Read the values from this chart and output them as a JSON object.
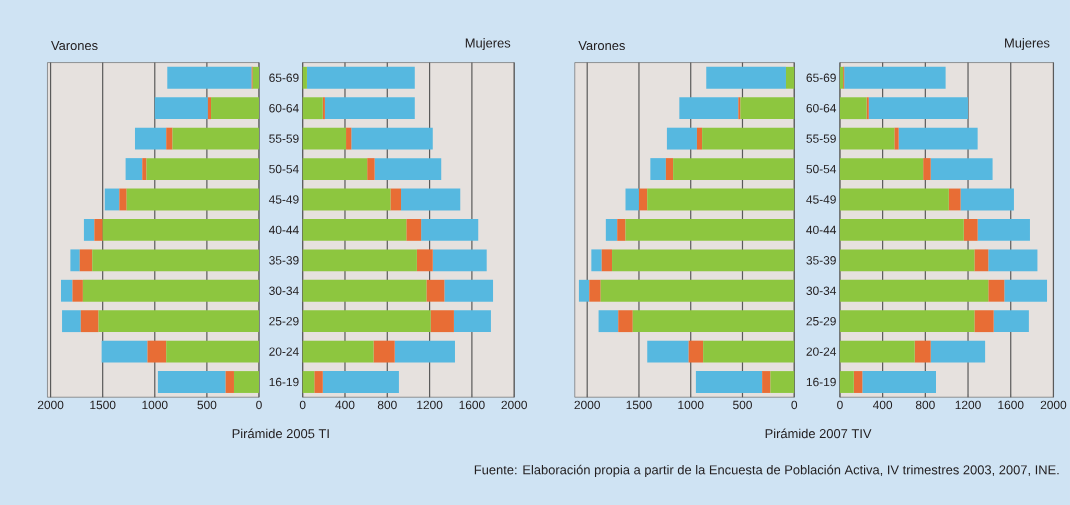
{
  "chart_data": [
    {
      "type": "bar",
      "orientation": "horizontal",
      "stacked": true,
      "title": "Varones",
      "categories": [
        null,
        null,
        null,
        null,
        null,
        null,
        null,
        null,
        null,
        null,
        null
      ],
      "series": [
        {
          "color": "#8dc63f",
          "values": [
            60,
            460,
            830,
            1080,
            1270,
            1500,
            1600,
            1690,
            1540,
            890,
            240
          ]
        },
        {
          "color": "#e86d35",
          "values": [
            10,
            30,
            60,
            40,
            70,
            80,
            120,
            100,
            170,
            180,
            80
          ]
        },
        {
          "color": "#56b8e0",
          "values": [
            810,
            510,
            300,
            160,
            140,
            100,
            90,
            110,
            180,
            440,
            650
          ]
        }
      ],
      "xlim": [
        2030,
        0
      ],
      "xticks": [
        2000,
        1500,
        1000,
        500,
        0
      ],
      "grid": "x",
      "tick_labels": "x"
    },
    {
      "type": "bar",
      "orientation": "horizontal",
      "stacked": true,
      "title": "Mujeres",
      "xlabel": "Pirámide 2005 TI",
      "categories": [
        "65-69",
        "60-64",
        "55-59",
        "50-54",
        "45-49",
        "40-44",
        "35-39",
        "30-34",
        "25-29",
        "20-24",
        "16-19"
      ],
      "series": [
        {
          "color": "#8dc63f",
          "values": [
            40,
            190,
            410,
            610,
            830,
            980,
            1080,
            1170,
            1210,
            670,
            110
          ]
        },
        {
          "color": "#e86d35",
          "values": [
            null,
            20,
            50,
            70,
            100,
            140,
            150,
            170,
            220,
            200,
            80
          ]
        },
        {
          "color": "#56b8e0",
          "values": [
            1020,
            850,
            770,
            630,
            560,
            540,
            510,
            460,
            350,
            570,
            720
          ]
        }
      ],
      "xlim": [
        0,
        2000
      ],
      "xticks": [
        0,
        400,
        800,
        1200,
        1600,
        2000
      ],
      "grid": "x"
    },
    {
      "type": "bar",
      "orientation": "horizontal",
      "stacked": true,
      "title": "Varones",
      "categories": [
        null,
        null,
        null,
        null,
        null,
        null,
        null,
        null,
        null,
        null,
        null
      ],
      "series": [
        {
          "color": "#8dc63f",
          "values": [
            80,
            520,
            890,
            1170,
            1420,
            1630,
            1760,
            1870,
            1560,
            880,
            230
          ]
        },
        {
          "color": "#e86d35",
          "values": [
            null,
            20,
            50,
            70,
            80,
            80,
            100,
            110,
            140,
            140,
            80
          ]
        },
        {
          "color": "#56b8e0",
          "values": [
            770,
            570,
            290,
            150,
            130,
            110,
            100,
            100,
            190,
            400,
            640
          ]
        }
      ],
      "xlim": [
        2120,
        0
      ],
      "xticks": [
        2000,
        1500,
        1000,
        500,
        0
      ],
      "grid": "x",
      "tick_labels": "x"
    },
    {
      "type": "bar",
      "orientation": "horizontal",
      "stacked": true,
      "title": "Mujeres",
      "xlabel": "Pirámide 2007 TIV",
      "categories": [
        "65-69",
        "60-64",
        "55-59",
        "50-54",
        "45-49",
        "40-44",
        "35-39",
        "30-34",
        "25-29",
        "20-24",
        "16-19"
      ],
      "series": [
        {
          "color": "#8dc63f",
          "values": [
            30,
            250,
            510,
            780,
            1020,
            1160,
            1260,
            1390,
            1260,
            700,
            130
          ]
        },
        {
          "color": "#e86d35",
          "values": [
            10,
            20,
            40,
            70,
            110,
            130,
            130,
            150,
            180,
            150,
            80
          ]
        },
        {
          "color": "#56b8e0",
          "values": [
            950,
            930,
            740,
            580,
            500,
            490,
            460,
            400,
            330,
            510,
            690
          ]
        }
      ],
      "xlim": [
        0,
        2000
      ],
      "xticks": [
        0,
        400,
        800,
        1200,
        1600,
        2000
      ],
      "grid": "x",
      "annotations": [
        "Fuente: Elaboración propia a partir de la Encuesta de Población Activa, IV trimestres 2003, 2007, INE."
      ]
    }
  ]
}
